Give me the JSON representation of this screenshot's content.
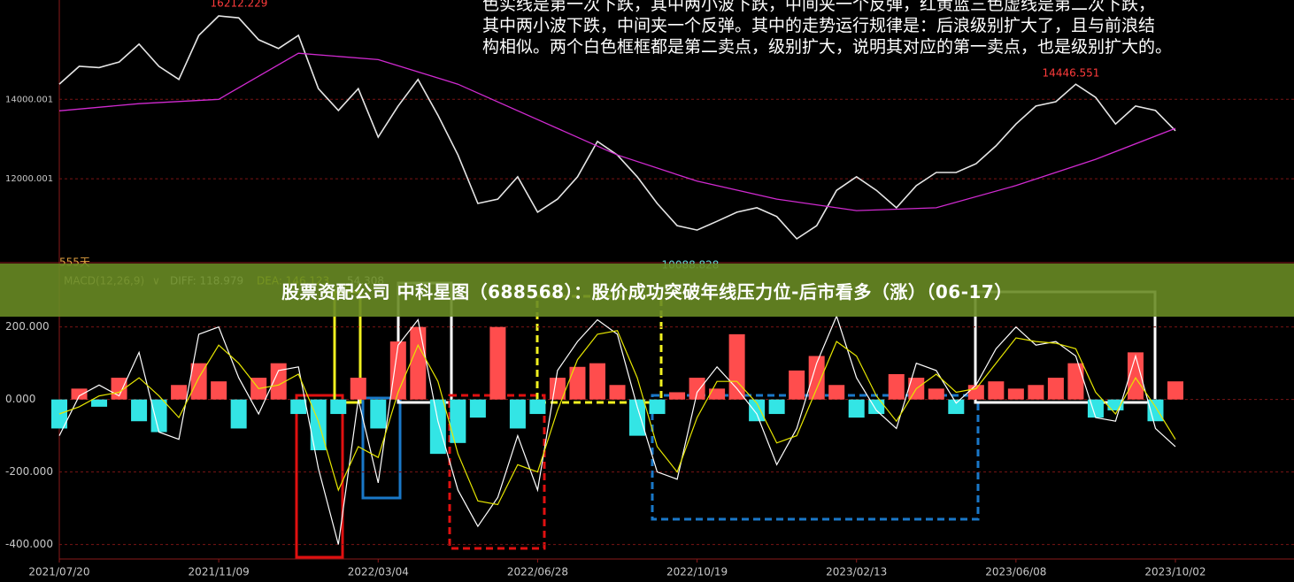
{
  "overlay": {
    "title": "股票资配公司 中科星图（688568）：股价成功突破年线压力位-后市看多（涨）（06-17）"
  },
  "note": {
    "lines": [
      "色实线是第一次下跌，其中两小波下跌，中间夹一个反弹，红黄蓝三色虚线是第二次下跌，",
      "其中两小波下跌，中间夹一个反弹。其中的走势运行规律是：后浪级别扩大了，且与前浪结",
      "构相似。两个白色框框都是第二卖点，级别扩大，说明其对应的第一卖点，也是级别扩大的。"
    ]
  },
  "chart_data": [
    {
      "type": "line",
      "xlim": [
        0,
        560
      ],
      "ylim": [
        10000,
        16500
      ],
      "yticks": [
        14000.001,
        12000.001
      ],
      "grid": true,
      "x": [
        0,
        10,
        20,
        30,
        40,
        50,
        60,
        70,
        80,
        90,
        100,
        110,
        120,
        130,
        140,
        150,
        160,
        170,
        180,
        190,
        200,
        210,
        220,
        230,
        240,
        250,
        260,
        270,
        280,
        290,
        300,
        310,
        320,
        330,
        340,
        350,
        360,
        370,
        380,
        390,
        400,
        410,
        420,
        430,
        440,
        450,
        460,
        470,
        480,
        490,
        500,
        510,
        520,
        530,
        540,
        550,
        560
      ],
      "series": [
        {
          "color": "#e6e6e6",
          "values": [
            14384,
            14830,
            14800,
            14940,
            15390,
            14830,
            14500,
            15610,
            16100,
            16050,
            15500,
            15280,
            15610,
            14270,
            13720,
            14270,
            13050,
            13830,
            14500,
            13600,
            12600,
            11380,
            11490,
            12050,
            11160,
            11490,
            12050,
            12940,
            12600,
            12050,
            11380,
            10820,
            10710,
            10930,
            11160,
            11270,
            11050,
            10490,
            10820,
            11710,
            12050,
            11710,
            11270,
            11830,
            12160,
            12160,
            12380,
            12830,
            13380,
            13830,
            13940,
            14380,
            14050,
            13380,
            13830,
            13720,
            13210
          ]
        },
        {
          "color": "#d02ad0",
          "x": [
            0,
            40,
            80,
            120,
            160,
            200,
            240,
            280,
            320,
            360,
            400,
            440,
            480,
            520,
            560
          ],
          "values": [
            13710,
            13890,
            14000,
            15160,
            15000,
            14380,
            13490,
            12600,
            11940,
            11490,
            11200,
            11270,
            11830,
            12490,
            13270
          ]
        }
      ],
      "annotations": [
        {
          "text": "16212.229",
          "color": "#ff3b3b"
        },
        {
          "text": "14446.551",
          "color": "#ff3b3b"
        },
        {
          "text": "10088.828",
          "color": "#5fd3d3"
        }
      ]
    },
    {
      "type": "macd",
      "title": "MACD(12,26,9)",
      "period_label": "555天",
      "readout": [
        "DIFF: 118.979",
        "DEA: 146.123",
        "54.308"
      ],
      "xlim": [
        0,
        560
      ],
      "ylim": [
        -440,
        370
      ],
      "grid": true,
      "yticks": [
        {
          "value": 200,
          "label": "200.000"
        },
        {
          "value": 0,
          "label": "0.000"
        },
        {
          "value": -200,
          "label": "-200.000"
        },
        {
          "value": -400,
          "label": "-400.000"
        }
      ],
      "xticks": [
        {
          "value": 0,
          "label": "2021/07/20"
        },
        {
          "value": 80,
          "label": "2021/11/09"
        },
        {
          "value": 160,
          "label": "2022/03/04"
        },
        {
          "value": 240,
          "label": "2022/06/28"
        },
        {
          "value": 320,
          "label": "2022/10/19"
        },
        {
          "value": 400,
          "label": "2023/02/13"
        },
        {
          "value": 480,
          "label": "2023/06/08"
        },
        {
          "value": 560,
          "label": "2023/10/02"
        }
      ],
      "x": [
        0,
        10,
        20,
        30,
        40,
        50,
        60,
        70,
        80,
        90,
        100,
        110,
        120,
        130,
        140,
        150,
        160,
        170,
        180,
        190,
        200,
        210,
        220,
        230,
        240,
        250,
        260,
        270,
        280,
        290,
        300,
        310,
        320,
        330,
        340,
        350,
        360,
        370,
        380,
        390,
        400,
        410,
        420,
        430,
        440,
        450,
        460,
        470,
        480,
        490,
        500,
        510,
        520,
        530,
        540,
        550,
        560
      ],
      "histogram": {
        "up_color": "#ff4d4d",
        "down_color": "#33e5e5",
        "values": [
          -80,
          30,
          -20,
          60,
          -60,
          -90,
          40,
          100,
          50,
          -80,
          60,
          100,
          -40,
          -140,
          -40,
          60,
          -80,
          160,
          200,
          -150,
          -120,
          -50,
          200,
          -80,
          -40,
          60,
          90,
          100,
          40,
          -100,
          -40,
          20,
          60,
          30,
          180,
          -60,
          -40,
          80,
          120,
          40,
          -50,
          -40,
          70,
          60,
          30,
          -40,
          40,
          50,
          30,
          40,
          60,
          100,
          -50,
          -30,
          130,
          -60,
          50
        ]
      },
      "series": [
        {
          "name": "DIFF",
          "color": "#ffffff",
          "values": [
            -100,
            10,
            40,
            10,
            130,
            -90,
            -110,
            180,
            200,
            60,
            -40,
            80,
            90,
            -190,
            -400,
            0,
            -230,
            150,
            220,
            -60,
            -250,
            -350,
            -270,
            -100,
            -250,
            80,
            160,
            220,
            180,
            -20,
            -200,
            -220,
            20,
            90,
            30,
            -40,
            -180,
            -80,
            100,
            230,
            60,
            -30,
            -80,
            100,
            80,
            -10,
            40,
            140,
            200,
            150,
            160,
            120,
            -50,
            -60,
            120,
            -80,
            -130
          ]
        },
        {
          "name": "DEA",
          "color": "#e6e600",
          "values": [
            -40,
            -20,
            10,
            20,
            60,
            10,
            -50,
            60,
            150,
            100,
            30,
            40,
            70,
            -60,
            -250,
            -130,
            -160,
            20,
            150,
            50,
            -150,
            -280,
            -290,
            -180,
            -200,
            -30,
            110,
            180,
            190,
            60,
            -130,
            -200,
            -50,
            50,
            50,
            -10,
            -120,
            -100,
            30,
            160,
            120,
            10,
            -60,
            30,
            70,
            20,
            30,
            100,
            170,
            160,
            155,
            140,
            20,
            -40,
            60,
            -20,
            -110
          ]
        }
      ]
    }
  ]
}
